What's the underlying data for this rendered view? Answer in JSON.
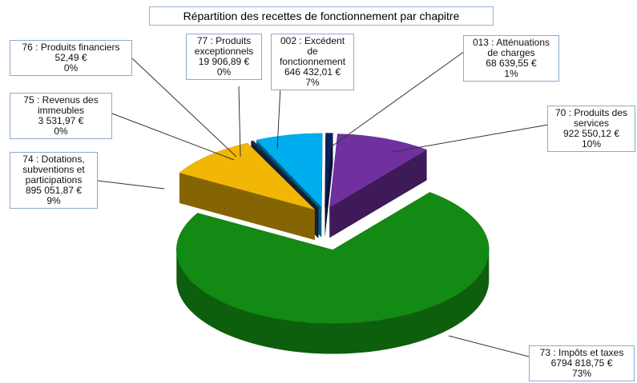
{
  "chart_data": {
    "type": "pie",
    "title": "Répartition des recettes de fonctionnement  par chapitre",
    "categories": [
      "013 : Atténuations de charges",
      "70 : Produits des services",
      "73 : Impôts et taxes",
      "74 : Dotations, subventions et participations",
      "75 : Revenus des immeubles",
      "76 : Produits financiers",
      "77 : Produits exceptionnels",
      "002 : Excédent de fonctionnement"
    ],
    "values": [
      68639.55,
      922550.12,
      6794818.75,
      895051.87,
      3531.97,
      52.49,
      19906.89,
      646432.01
    ],
    "value_labels": [
      "68 639,55 €",
      "922 550,12 €",
      "6794 818,75 €",
      "895 051,87 €",
      "3 531,97 €",
      "52,49 €",
      "19 906,89 €",
      "646 432,01 €"
    ],
    "percent_labels": [
      "1%",
      "10%",
      "73%",
      "9%",
      "0%",
      "0%",
      "0%",
      "7%"
    ],
    "colors": [
      "#0b1f5c",
      "#7030a0",
      "#138a13",
      "#f2b705",
      "#1f3864",
      "#2e4a6b",
      "#16305e",
      "#00aeef"
    ]
  }
}
